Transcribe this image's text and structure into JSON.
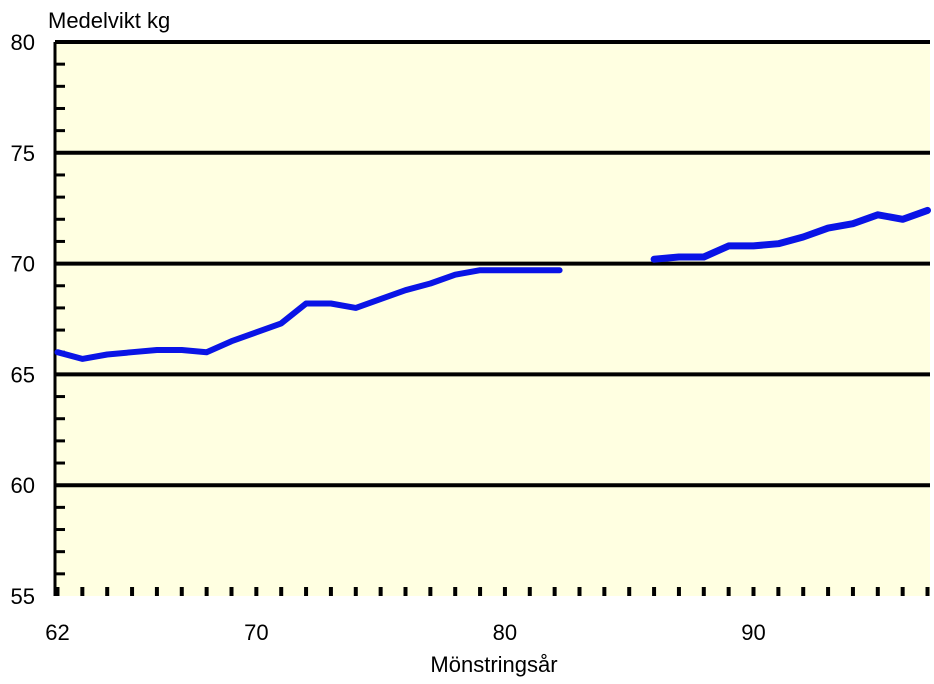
{
  "chart_data": {
    "type": "line",
    "title": "",
    "ylabel": "Medelvikt kg",
    "xlabel": "Mönstringsår",
    "xlim": [
      61.9,
      97.1
    ],
    "ylim": [
      55,
      80
    ],
    "x_ticks": [
      62,
      70,
      80,
      90
    ],
    "y_ticks": [
      55,
      60,
      65,
      70,
      75,
      80
    ],
    "grid": true,
    "legend": "none",
    "plot_background": "#ffffe1",
    "line_color": "#0a14e6",
    "series": [
      {
        "x": [
          62,
          63,
          64,
          65,
          66,
          67,
          68,
          69,
          70,
          71,
          72,
          73,
          74,
          75,
          76,
          77,
          78,
          79,
          80,
          81,
          82.2
        ],
        "values": [
          66.0,
          65.7,
          65.9,
          66.0,
          66.1,
          66.1,
          66.0,
          66.5,
          66.9,
          67.3,
          68.2,
          68.2,
          68.0,
          68.4,
          68.8,
          69.1,
          69.5,
          69.7,
          69.7,
          69.7,
          69.7
        ]
      },
      {
        "x": [
          86,
          87,
          88,
          89,
          90,
          91,
          92,
          93,
          94,
          95,
          96,
          97
        ],
        "values": [
          70.2,
          70.3,
          70.3,
          70.8,
          70.8,
          70.9,
          71.2,
          71.6,
          71.8,
          72.2,
          72.0,
          72.4
        ]
      }
    ]
  }
}
